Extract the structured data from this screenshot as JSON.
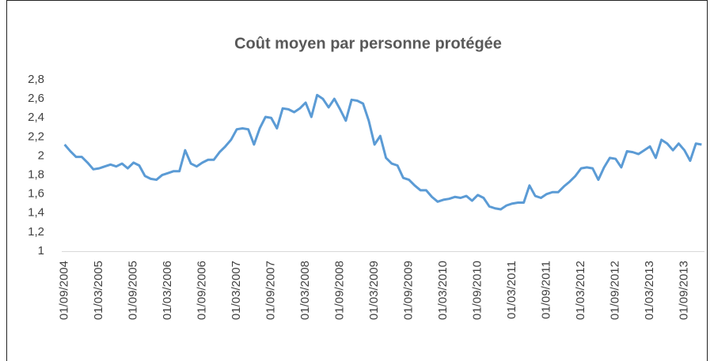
{
  "chart_data": {
    "type": "line",
    "title": "Coût moyen par personne protégée",
    "categories": [
      "01/09/2004",
      null,
      null,
      null,
      null,
      null,
      "01/03/2005",
      null,
      null,
      null,
      null,
      null,
      "01/09/2005",
      null,
      null,
      null,
      null,
      null,
      "01/03/2006",
      null,
      null,
      null,
      null,
      null,
      "01/09/2006",
      null,
      null,
      null,
      null,
      null,
      "01/03/2007",
      null,
      null,
      null,
      null,
      null,
      "01/09/2007",
      null,
      null,
      null,
      null,
      null,
      "01/03/2008",
      null,
      null,
      null,
      null,
      null,
      "01/09/2008",
      null,
      null,
      null,
      null,
      null,
      "01/03/2009",
      null,
      null,
      null,
      null,
      null,
      "01/09/2009",
      null,
      null,
      null,
      null,
      null,
      "01/03/2010",
      null,
      null,
      null,
      null,
      null,
      "01/09/2010",
      null,
      null,
      null,
      null,
      null,
      "01/03/2011",
      null,
      null,
      null,
      null,
      null,
      "01/09/2011",
      null,
      null,
      null,
      null,
      null,
      "01/03/2012",
      null,
      null,
      null,
      null,
      null,
      "01/09/2012",
      null,
      null,
      null,
      null,
      null,
      "01/03/2013",
      null,
      null,
      null,
      null,
      null,
      "01/09/2013",
      null,
      null,
      null
    ],
    "series": [
      {
        "color": "#5b9bd5",
        "values": [
          2.12,
          2.05,
          1.99,
          1.99,
          1.93,
          1.86,
          1.87,
          1.89,
          1.91,
          1.89,
          1.92,
          1.87,
          1.93,
          1.9,
          1.79,
          1.76,
          1.75,
          1.8,
          1.82,
          1.84,
          1.84,
          2.06,
          1.92,
          1.89,
          1.93,
          1.96,
          1.96,
          2.04,
          2.1,
          2.17,
          2.28,
          2.29,
          2.28,
          2.12,
          2.29,
          2.41,
          2.4,
          2.29,
          2.5,
          2.49,
          2.46,
          2.5,
          2.56,
          2.41,
          2.64,
          2.6,
          2.51,
          2.6,
          2.49,
          2.37,
          2.59,
          2.58,
          2.55,
          2.37,
          2.12,
          2.21,
          1.98,
          1.92,
          1.9,
          1.77,
          1.75,
          1.69,
          1.64,
          1.64,
          1.57,
          1.52,
          1.54,
          1.55,
          1.57,
          1.56,
          1.58,
          1.53,
          1.59,
          1.56,
          1.47,
          1.45,
          1.44,
          1.48,
          1.5,
          1.51,
          1.51,
          1.69,
          1.58,
          1.56,
          1.6,
          1.62,
          1.62,
          1.68,
          1.73,
          1.79,
          1.87,
          1.88,
          1.87,
          1.75,
          1.88,
          1.98,
          1.97,
          1.88,
          2.05,
          2.04,
          2.02,
          2.06,
          2.1,
          1.98,
          2.17,
          2.13,
          2.06,
          2.13,
          2.06,
          1.95,
          2.13,
          2.12
        ]
      }
    ],
    "ylim": [
      1,
      2.8
    ],
    "yticks": [
      1,
      {
        "value": 1.2,
        "label": "1,2"
      },
      {
        "value": 1.4,
        "label": "1,4"
      },
      {
        "value": 1.6,
        "label": "1,6"
      },
      {
        "value": 1.8,
        "label": "1,8"
      },
      2,
      {
        "value": 2.2,
        "label": "2,2"
      },
      {
        "value": 2.4,
        "label": "2,4"
      },
      {
        "value": 2.6,
        "label": "2,6"
      },
      {
        "value": 2.8,
        "label": "2,8"
      }
    ],
    "grid": false
  }
}
